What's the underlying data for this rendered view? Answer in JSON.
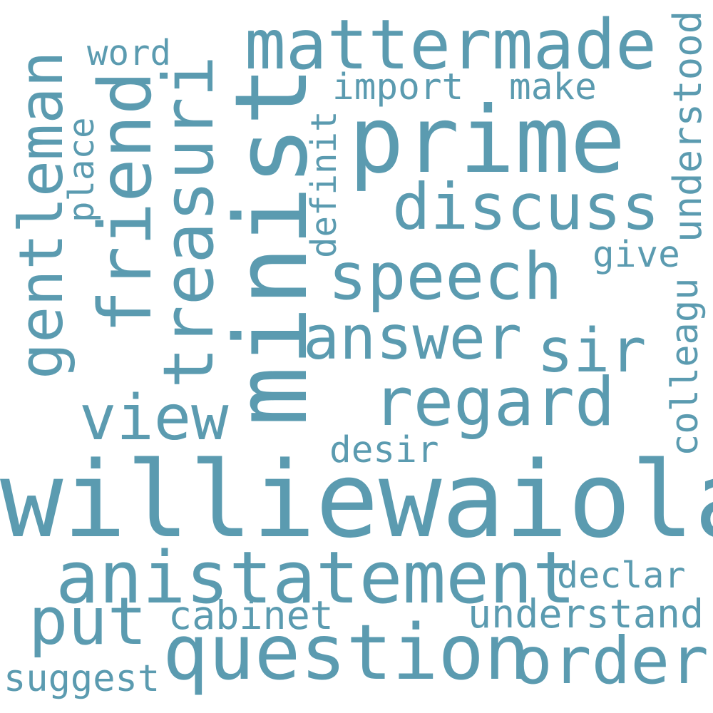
{
  "palette": {
    "background": "#ffffff",
    "word_color": "#5b9bb0"
  },
  "words": {
    "williewaiola": "williewaiola",
    "prime": "prime",
    "minist": "minist",
    "question": "question",
    "anistatement": "anistatement",
    "mattermade": "mattermade",
    "discuss": "discuss",
    "speech": "speech",
    "answer": "answer",
    "regard": "regard",
    "order": "order",
    "sir": "sir",
    "view": "view",
    "put": "put",
    "friend": "friend",
    "treasuri": "treasuri",
    "gentleman": "gentleman",
    "understand": "understand",
    "declar": "declar",
    "cabinet": "cabinet",
    "suggest": "suggest",
    "desir": "desir",
    "import": "import",
    "make": "make",
    "word": "word",
    "give": "give",
    "place": "place",
    "definit": "definit",
    "understood": "understood",
    "colleagu": "colleagu"
  }
}
